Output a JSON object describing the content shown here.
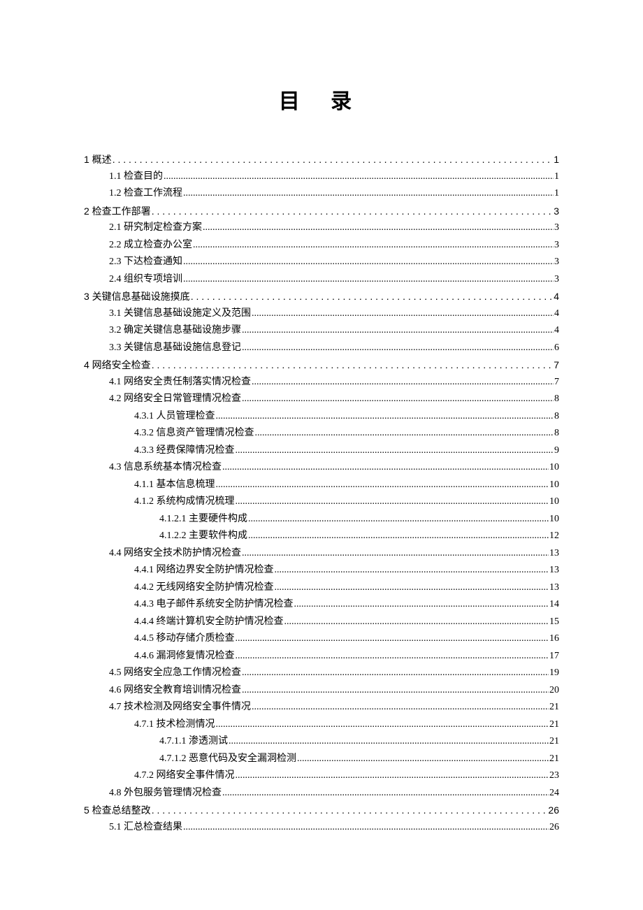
{
  "title": "目 录",
  "leader_sparse": ". . . . . . . . . . . . . . . . . . . . . . . . . . . . . . . . . . . . . . . . . . . . . . . . . . . . . . . . . . . . . . . . . . . . . . . . . . . . . . . . . . . . . . . . . . . . . . . . . . . . . . . . . . . . . . . . . . . . . . . . . . . . . . . . . . . . . . . .",
  "leader_dense": "..............................................................................................................................................................................................................................................",
  "text_color": "#000000",
  "background_color": "#ffffff",
  "body_fontsize": 14,
  "title_fontsize": 30,
  "entries": [
    {
      "level": 0,
      "text": "1 概述",
      "page": "1",
      "leader": "sparse",
      "heavy": true
    },
    {
      "level": 1,
      "text": "1.1 检查目的",
      "page": "1",
      "leader": "dense"
    },
    {
      "level": 1,
      "text": "1.2 检查工作流程",
      "page": "1",
      "leader": "dense"
    },
    {
      "level": 0,
      "text": "2 检查工作部署",
      "page": "3",
      "leader": "sparse",
      "heavy": true
    },
    {
      "level": 1,
      "text": "2.1 研究制定检查方案",
      "page": "3",
      "leader": "dense"
    },
    {
      "level": 1,
      "text": "2.2 成立检查办公室",
      "page": "3",
      "leader": "dense"
    },
    {
      "level": 1,
      "text": "2.3 下达检查通知",
      "page": "3",
      "leader": "dense"
    },
    {
      "level": 1,
      "text": "2.4 组织专项培训",
      "page": "3",
      "leader": "dense"
    },
    {
      "level": 0,
      "text": "3 关键信息基础设施摸底",
      "page": "4",
      "leader": "sparse",
      "heavy": true
    },
    {
      "level": 1,
      "text": "3.1 关键信息基础设施定义及范围",
      "page": "4",
      "leader": "dense"
    },
    {
      "level": 1,
      "text": "3.2 确定关键信息基础设施步骤",
      "page": "4",
      "leader": "dense"
    },
    {
      "level": 1,
      "text": "3.3 关键信息基础设施信息登记",
      "page": "6",
      "leader": "dense"
    },
    {
      "level": 0,
      "text": "4 网络安全检查",
      "page": "7",
      "leader": "sparse",
      "heavy": true
    },
    {
      "level": 1,
      "text": "4.1 网络安全责任制落实情况检查",
      "page": "7",
      "leader": "dense"
    },
    {
      "level": 1,
      "text": "4.2 网络安全日常管理情况检查",
      "page": "8",
      "leader": "dense"
    },
    {
      "level": 2,
      "text": "4.3.1 人员管理检查",
      "page": "8",
      "leader": "dense"
    },
    {
      "level": 2,
      "text": "4.3.2 信息资产管理情况检查",
      "page": "8",
      "leader": "dense"
    },
    {
      "level": 2,
      "text": "4.3.3 经费保障情况检查",
      "page": "9",
      "leader": "dense"
    },
    {
      "level": 1,
      "text": "4.3 信息系统基本情况检查",
      "page": "10",
      "leader": "dense"
    },
    {
      "level": 2,
      "text": "4.1.1 基本信息梳理",
      "page": "10",
      "leader": "dense"
    },
    {
      "level": 2,
      "text": "4.1.2 系统构成情况梳理",
      "page": "10",
      "leader": "dense"
    },
    {
      "level": 3,
      "text": "4.1.2.1 主要硬件构成",
      "page": "10",
      "leader": "dense"
    },
    {
      "level": 3,
      "text": "4.1.2.2 主要软件构成",
      "page": "12",
      "leader": "dense"
    },
    {
      "level": 1,
      "text": "4.4 网络安全技术防护情况检查",
      "page": "13",
      "leader": "dense"
    },
    {
      "level": 2,
      "text": "4.4.1 网络边界安全防护情况检查",
      "page": "13",
      "leader": "dense"
    },
    {
      "level": 2,
      "text": "4.4.2 无线网络安全防护情况检查",
      "page": "13",
      "leader": "dense"
    },
    {
      "level": 2,
      "text": "4.4.3 电子邮件系统安全防护情况检查",
      "page": "14",
      "leader": "dense"
    },
    {
      "level": 2,
      "text": "4.4.4 终端计算机安全防护情况检查",
      "page": "15",
      "leader": "dense"
    },
    {
      "level": 2,
      "text": "4.4.5 移动存储介质检查",
      "page": "16",
      "leader": "dense"
    },
    {
      "level": 2,
      "text": "4.4.6 漏洞修复情况检查",
      "page": "17",
      "leader": "dense"
    },
    {
      "level": 1,
      "text": "4.5 网络安全应急工作情况检查",
      "page": "19",
      "leader": "dense"
    },
    {
      "level": 1,
      "text": "4.6 网络安全教育培训情况检查",
      "page": "20",
      "leader": "dense"
    },
    {
      "level": 1,
      "text": "4.7 技术检测及网络安全事件情况",
      "page": "21",
      "leader": "dense"
    },
    {
      "level": 2,
      "text": "4.7.1 技术检测情况",
      "page": "21",
      "leader": "dense"
    },
    {
      "level": 3,
      "text": "4.7.1.1 渗透测试",
      "page": "21",
      "leader": "dense"
    },
    {
      "level": 3,
      "text": "4.7.1.2 恶意代码及安全漏洞检测",
      "page": "21",
      "leader": "dense"
    },
    {
      "level": 2,
      "text": "4.7.2 网络安全事件情况",
      "page": "23",
      "leader": "dense"
    },
    {
      "level": 1,
      "text": "4.8 外包服务管理情况检查",
      "page": "24",
      "leader": "dense"
    },
    {
      "level": 0,
      "text": "5 检查总结整改",
      "page": "26",
      "leader": "sparse",
      "heavy": true
    },
    {
      "level": 1,
      "text": "5.1 汇总检查结果",
      "page": "26",
      "leader": "dense"
    }
  ]
}
